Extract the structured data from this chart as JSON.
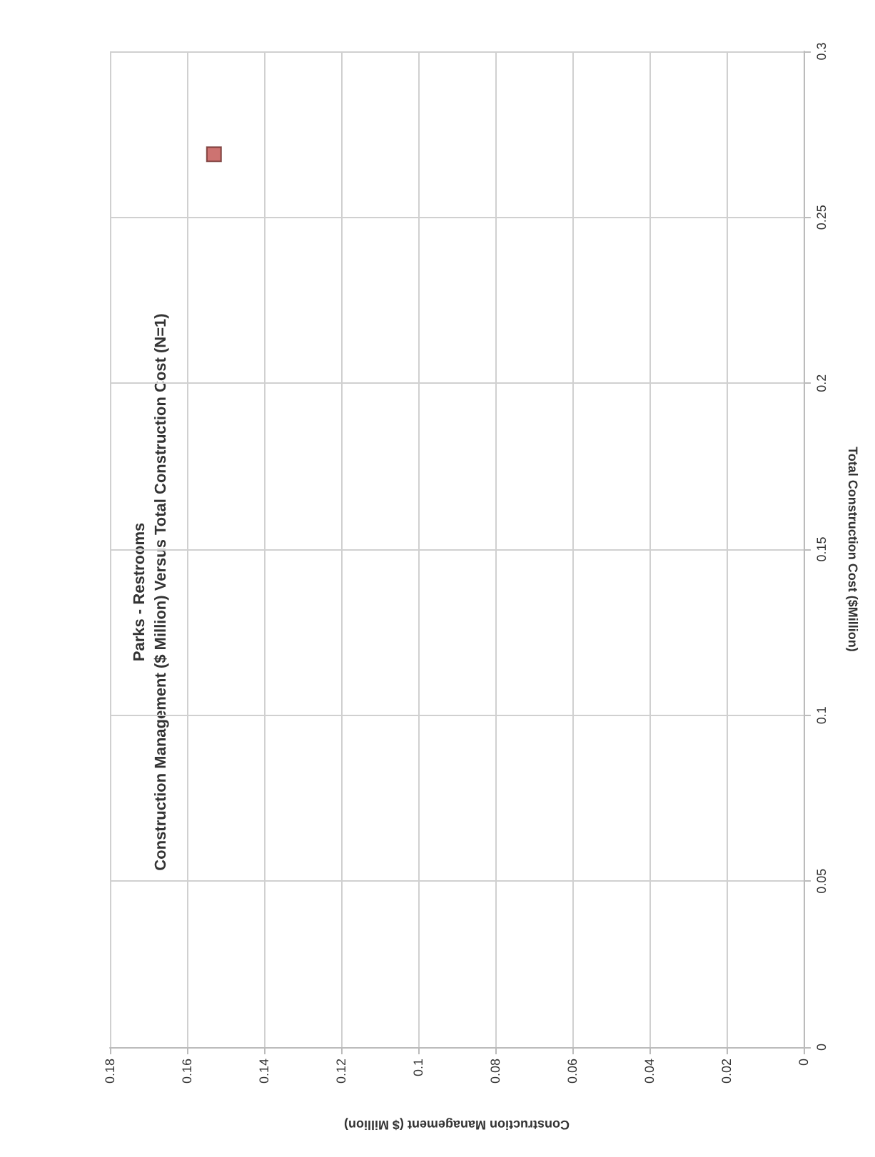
{
  "chart_data": {
    "type": "scatter",
    "title": "Parks - Restrooms",
    "subtitle": "Construction Management ($ Million) Versus Total Construction Cost (N=1)",
    "xlabel": "Construction Management ($ Million)",
    "ylabel": "Total Construction Cost ($Million)",
    "x": [
      0.153
    ],
    "series": [
      {
        "color": "#c0504d",
        "values": [
          0.269
        ]
      }
    ],
    "xlim": [
      0.18,
      0
    ],
    "xticks": [
      0.18,
      0.16,
      0.14,
      0.12,
      0.1,
      0.08,
      0.06,
      0.04,
      0.02,
      0
    ],
    "ylim": [
      0,
      0.3
    ],
    "yticks": [
      0,
      0.05,
      0.1,
      0.15,
      0.2,
      0.25,
      0.3
    ],
    "grid": true,
    "marker": "square"
  }
}
